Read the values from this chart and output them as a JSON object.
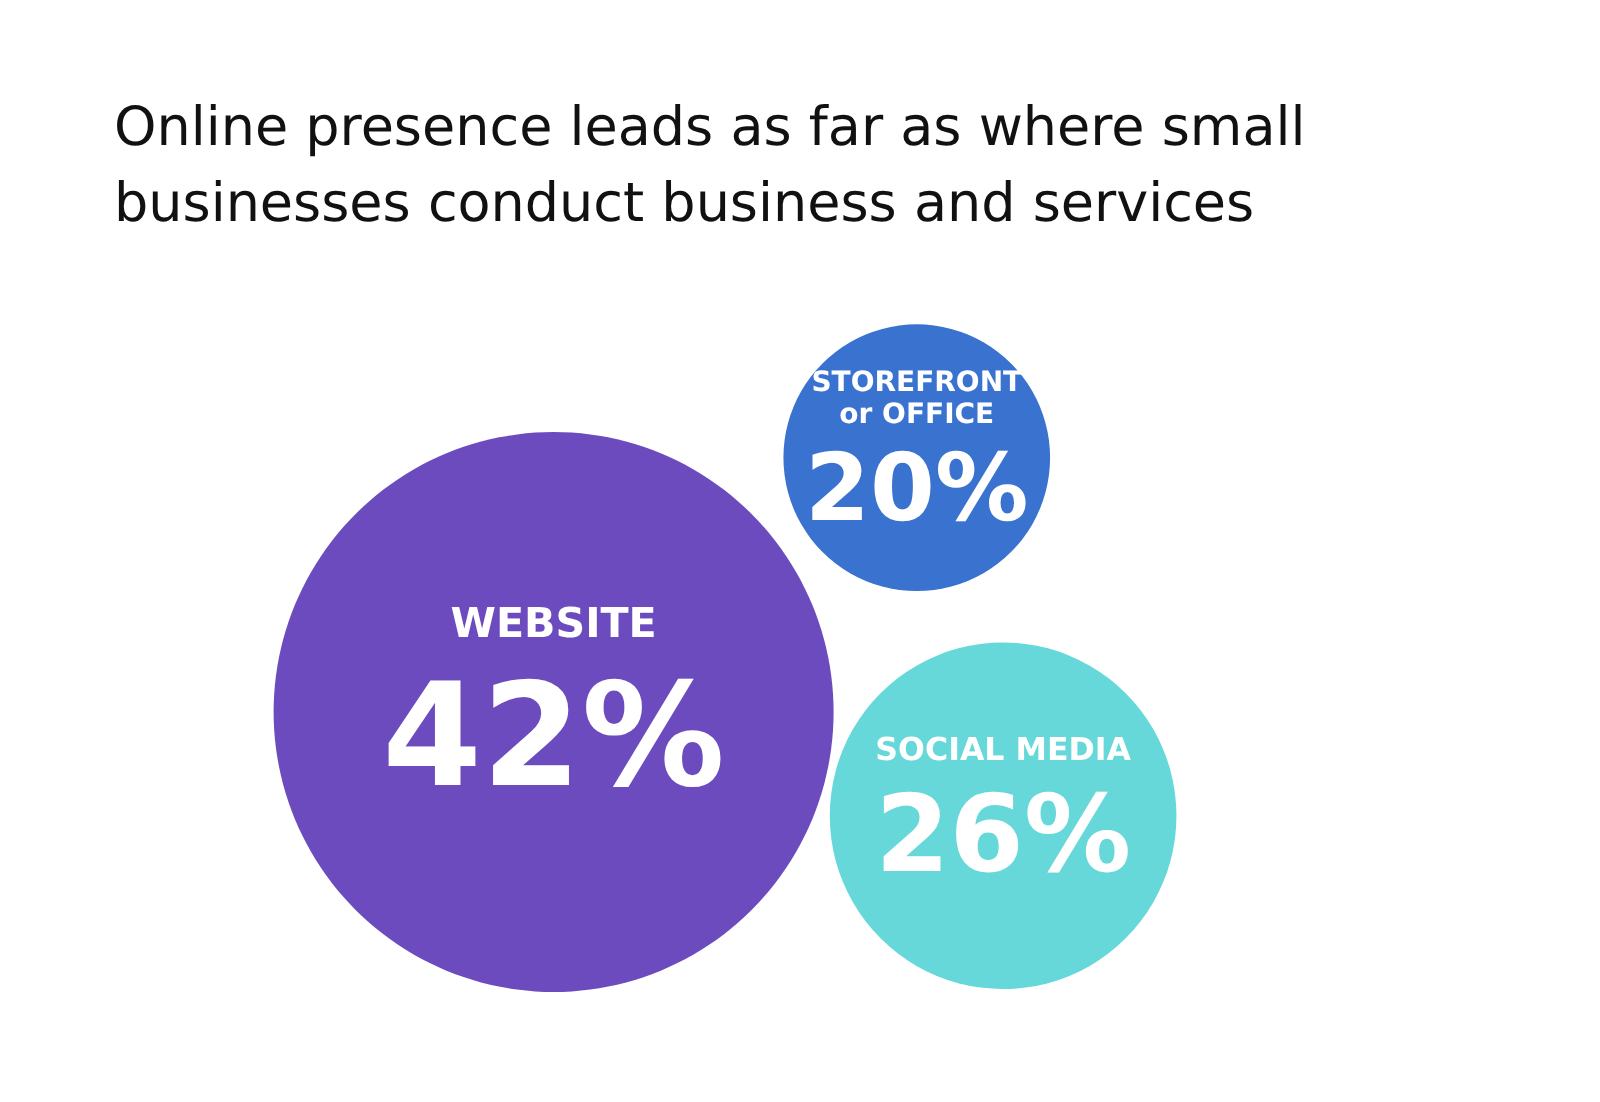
{
  "chart_data": {
    "type": "other",
    "title": "Online presence leads as far as where small businesses conduct business and services",
    "categories": [
      "WEBSITE",
      "STOREFRONT\nor OFFICE",
      "SOCIAL MEDIA"
    ],
    "values": [
      42,
      20,
      26
    ],
    "value_labels": [
      "42%",
      "20%",
      "26%"
    ],
    "colors": [
      "#6b4bbd",
      "#3a72cf",
      "#66d8d9"
    ]
  }
}
